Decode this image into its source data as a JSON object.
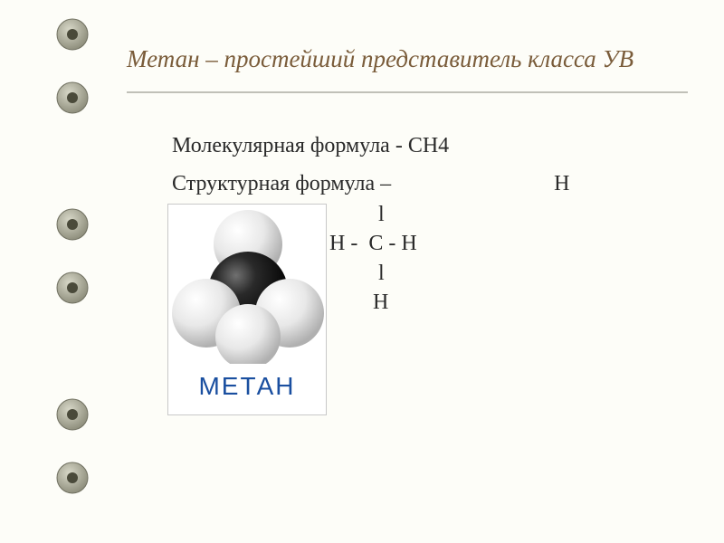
{
  "slide": {
    "title": "Метан – простейший представитель класса УВ",
    "title_color": "#7a5c3a",
    "title_fontsize": 27,
    "background_color": "#fdfdf8",
    "rule_color": "#c0c0b8"
  },
  "content": {
    "line1": "Молекулярная формула - СН4",
    "line2_prefix": "Структурная формула –    ",
    "structural_lines": {
      "l1": "                             Н",
      "l2": "                              l",
      "l3": "                     Н -  С - Н",
      "l4": "                              l",
      "l5": "                             Н"
    },
    "text_color": "#2a2a2a",
    "fontsize": 24
  },
  "molecule": {
    "label": "МЕТАН",
    "label_color": "#1a4fa0",
    "label_fontsize": 28,
    "box_border": "#c8c8c8",
    "box_bg": "#ffffff",
    "carbon_color": "#1a1a1a",
    "carbon_highlight": "#505050",
    "hydrogen_color": "#e8e8e8",
    "hydrogen_highlight": "#ffffff",
    "hydrogen_shadow": "#b8b8b8"
  },
  "binder": {
    "ring_outer": "#8a8a78",
    "ring_inner": "#d8d8c8",
    "hole_color": "#4a4a3a",
    "positions": [
      38,
      108,
      248,
      318,
      458,
      528
    ]
  }
}
